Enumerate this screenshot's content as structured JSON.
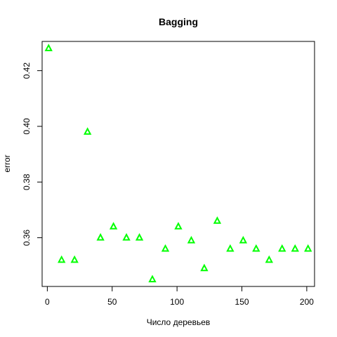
{
  "chart_data": {
    "type": "scatter",
    "title": "Bagging",
    "xlabel": "Число деревьев",
    "ylabel": "error",
    "xlim": [
      -4,
      206
    ],
    "ylim": [
      0.3425,
      0.4305
    ],
    "x_ticks": [
      0,
      50,
      100,
      150,
      200
    ],
    "y_ticks": [
      0.36,
      0.38,
      0.4,
      0.42
    ],
    "marker": "triangle",
    "marker_color": "#00ff00",
    "grid": false,
    "series": [
      {
        "x": [
          1,
          11,
          21,
          31,
          41,
          51,
          61,
          71,
          81,
          91,
          101,
          111,
          121,
          131,
          141,
          151,
          161,
          171,
          181,
          191,
          201
        ],
        "y": [
          0.428,
          0.352,
          0.352,
          0.398,
          0.36,
          0.364,
          0.36,
          0.36,
          0.345,
          0.356,
          0.364,
          0.359,
          0.349,
          0.366,
          0.356,
          0.359,
          0.356,
          0.352,
          0.356,
          0.356,
          0.356
        ]
      }
    ]
  }
}
